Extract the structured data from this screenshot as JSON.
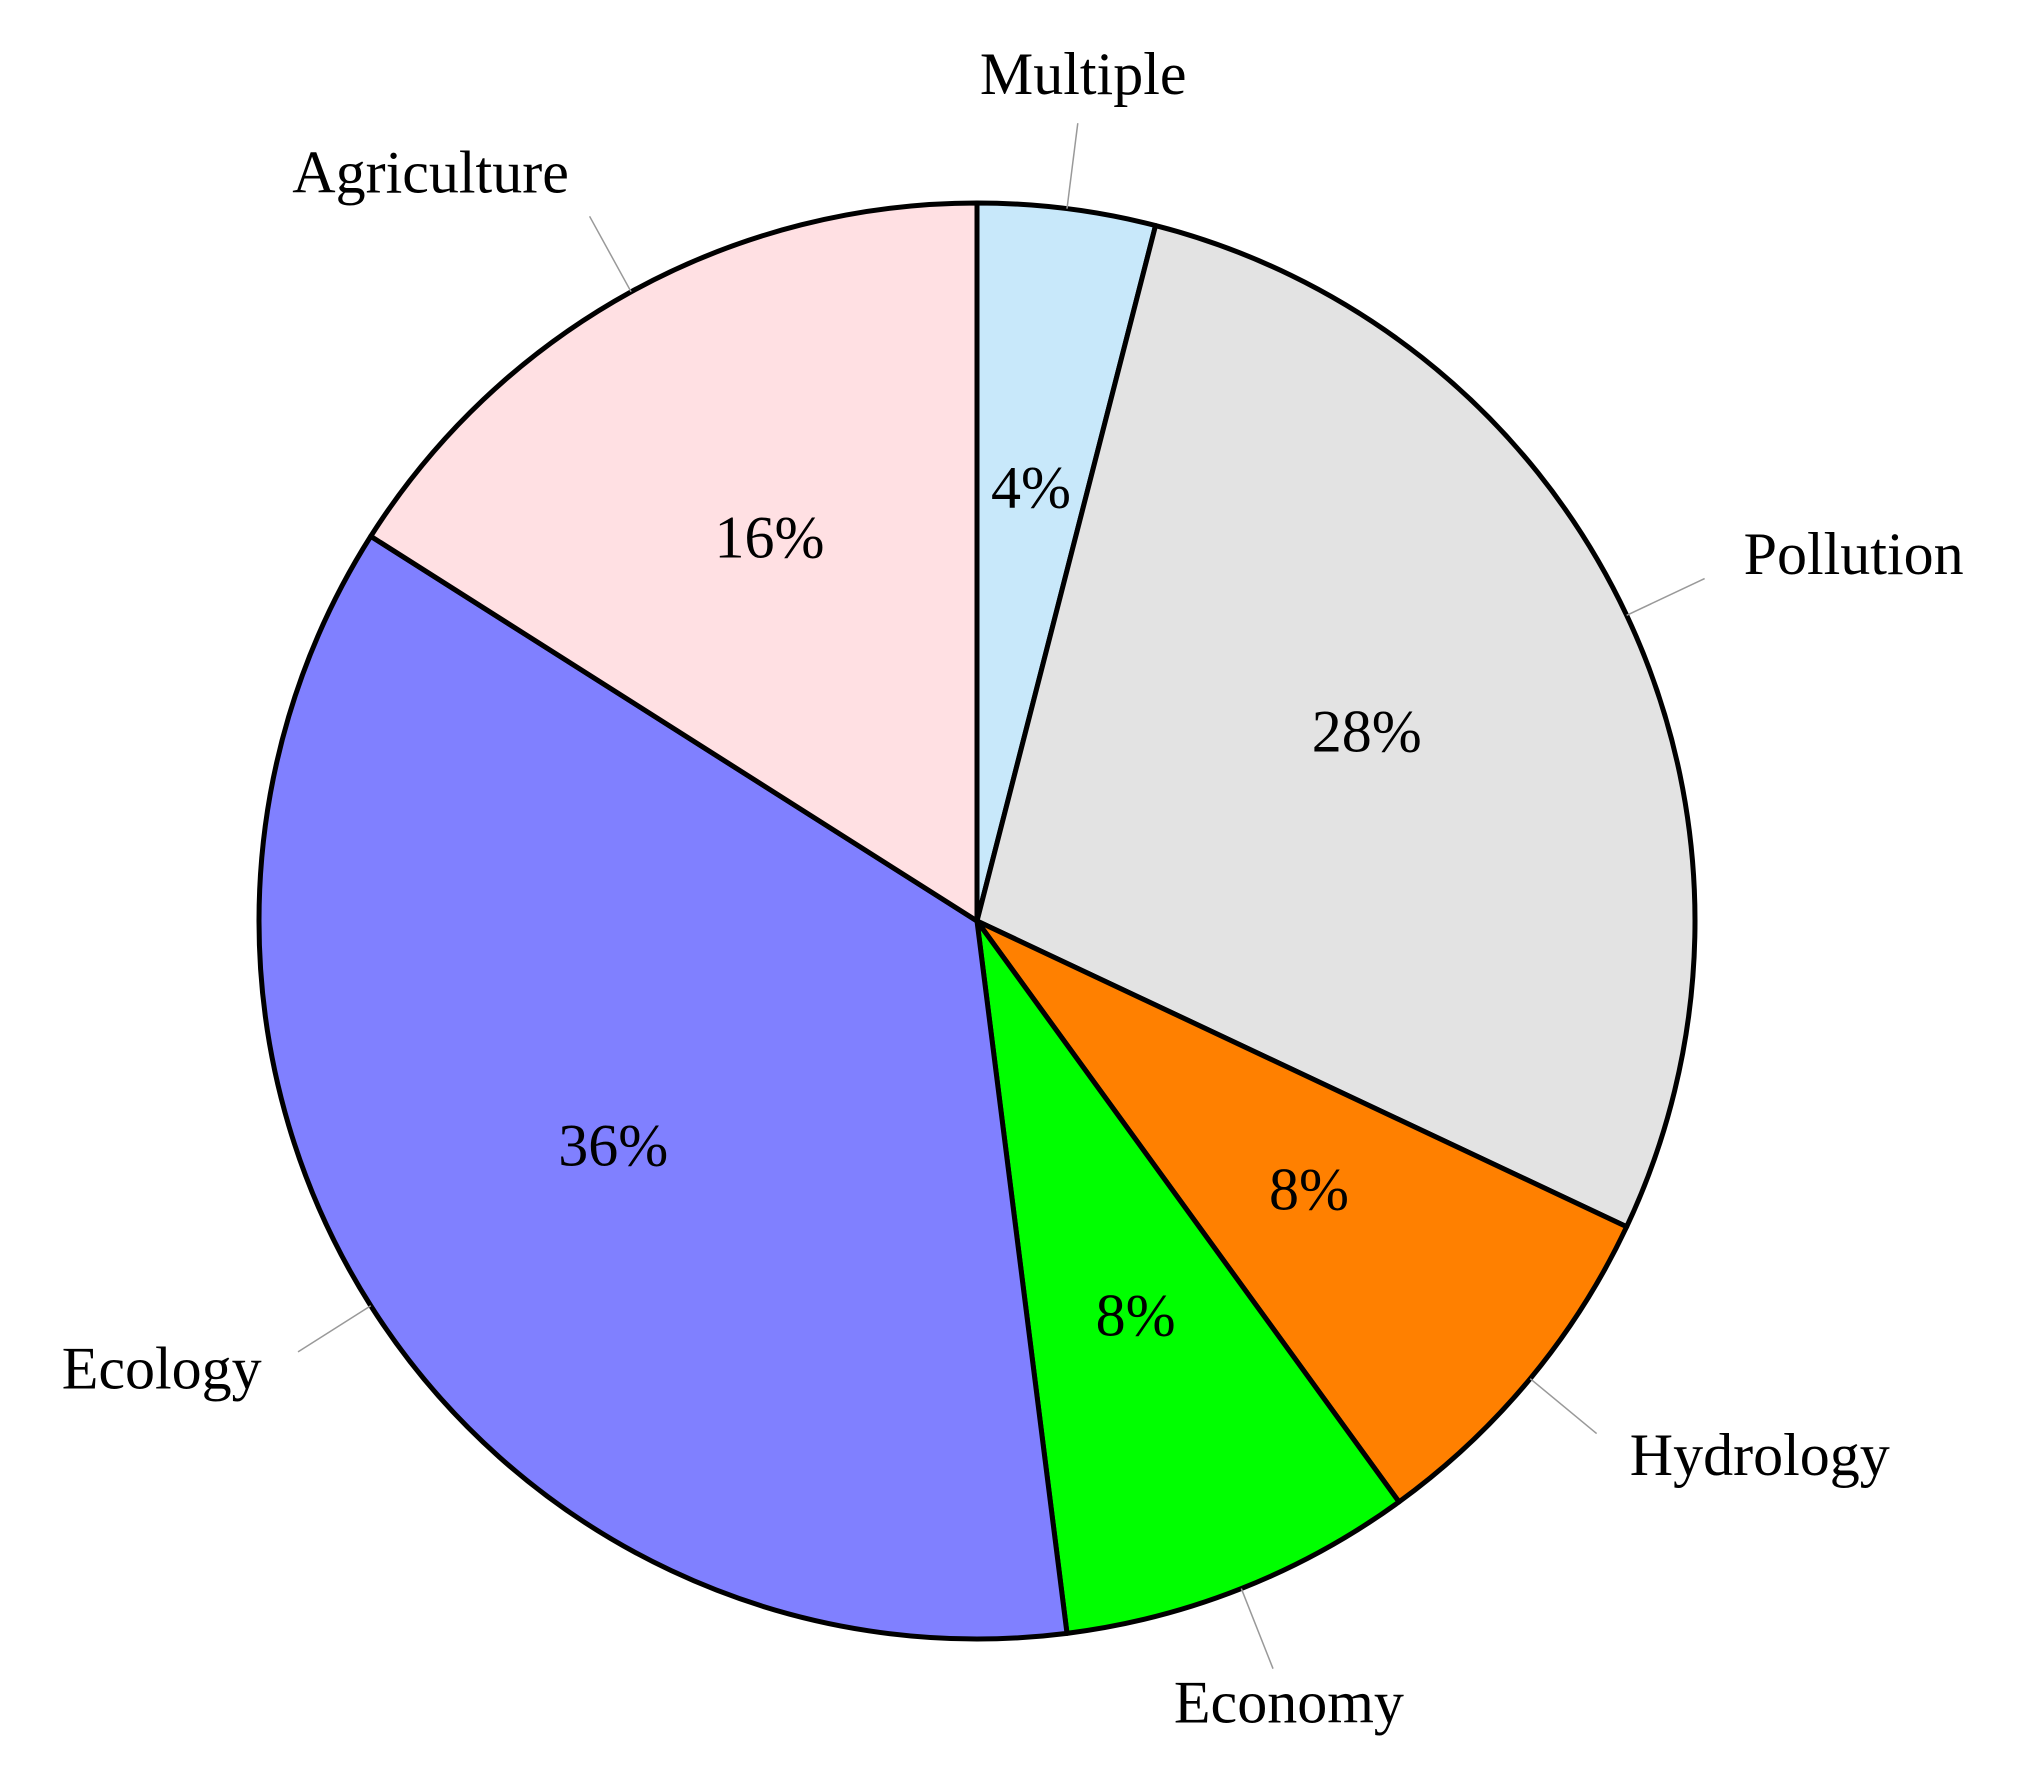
{
  "chart_data": {
    "type": "pie",
    "categories": [
      "Multiple",
      "Pollution",
      "Hydrology",
      "Economy",
      "Ecology",
      "Agriculture"
    ],
    "values": [
      4,
      28,
      8,
      8,
      36,
      16
    ],
    "value_labels": [
      "4%",
      "28%",
      "8%",
      "8%",
      "36%",
      "16%"
    ],
    "colors": [
      "#c8e8fa",
      "#e3e3e3",
      "#ff8000",
      "#00ff00",
      "#8080ff",
      "#ffe0e3"
    ]
  }
}
